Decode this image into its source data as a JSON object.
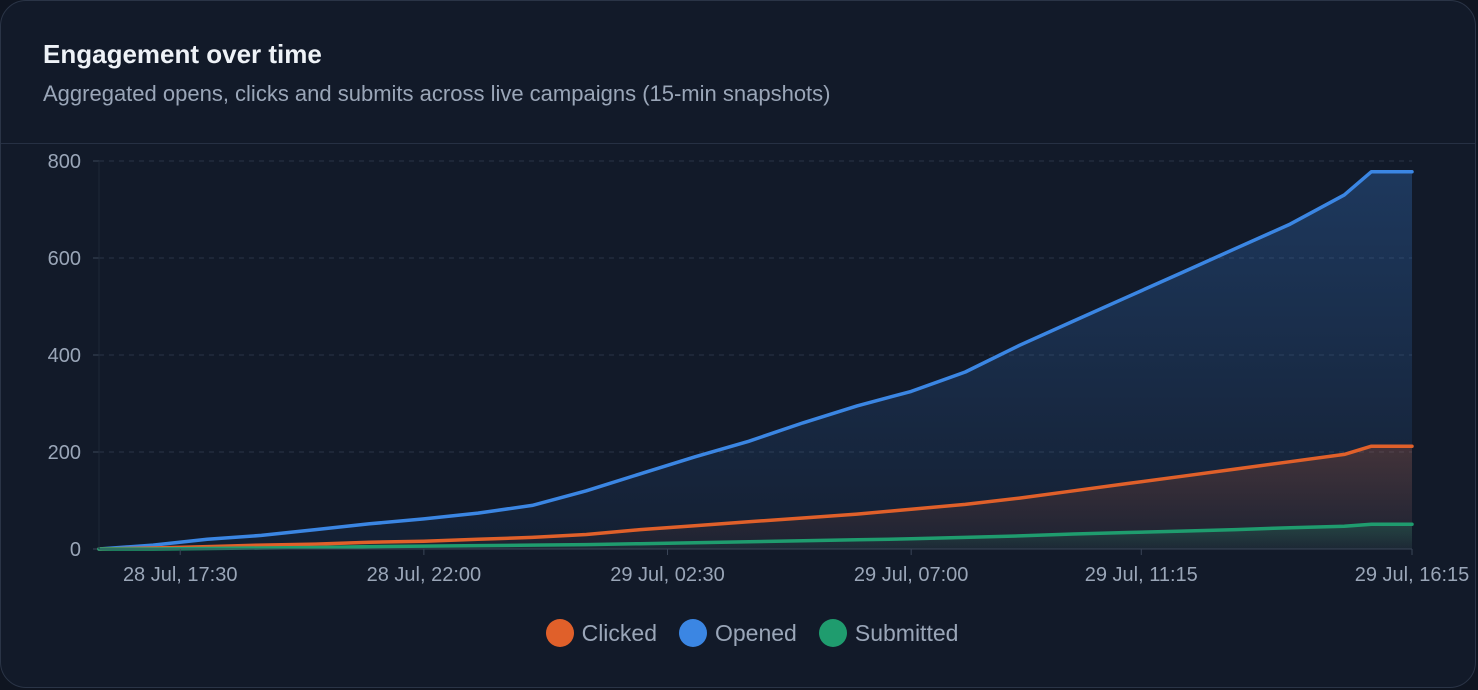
{
  "card": {
    "title": "Engagement over time",
    "subtitle": "Aggregated opens, clicks and submits across live campaigns (15-min snapshots)"
  },
  "colors": {
    "opened": "#3b86e3",
    "clicked": "#e0602a",
    "submitted": "#1f9c6e",
    "grid": "#2a3446",
    "axis": "#3a4558",
    "text": "#9aa6b8"
  },
  "legend": [
    {
      "label": "Clicked",
      "color": "#e0602a"
    },
    {
      "label": "Opened",
      "color": "#3b86e3"
    },
    {
      "label": "Submitted",
      "color": "#1f9c6e"
    }
  ],
  "chart_data": {
    "type": "area",
    "title": "",
    "xlabel": "",
    "ylabel": "",
    "ylim": [
      0,
      800
    ],
    "y_ticks": [
      0,
      200,
      400,
      600,
      800
    ],
    "x_tick_labels": [
      "28 Jul, 17:30",
      "28 Jul, 22:00",
      "29 Jul, 02:30",
      "29 Jul, 07:00",
      "29 Jul, 11:15",
      "29 Jul, 16:15"
    ],
    "x_tick_times": [
      "28 Jul, 17:30",
      "28 Jul, 22:00",
      "29 Jul, 02:30",
      "29 Jul, 07:00",
      "29 Jul, 11:15",
      "29 Jul, 16:15"
    ],
    "x_range": [
      "28 Jul, 16:00",
      "29 Jul, 16:15"
    ],
    "grid": true,
    "legend_position": "bottom",
    "x": [
      "28 Jul, 16:00",
      "28 Jul, 17:00",
      "28 Jul, 18:00",
      "28 Jul, 19:00",
      "28 Jul, 20:00",
      "28 Jul, 21:00",
      "28 Jul, 22:00",
      "28 Jul, 23:00",
      "29 Jul, 00:00",
      "29 Jul, 01:00",
      "29 Jul, 02:00",
      "29 Jul, 03:00",
      "29 Jul, 04:00",
      "29 Jul, 05:00",
      "29 Jul, 06:00",
      "29 Jul, 07:00",
      "29 Jul, 08:00",
      "29 Jul, 09:00",
      "29 Jul, 10:00",
      "29 Jul, 11:00",
      "29 Jul, 12:00",
      "29 Jul, 13:00",
      "29 Jul, 14:00",
      "29 Jul, 15:00",
      "29 Jul, 15:30",
      "29 Jul, 16:15"
    ],
    "series": [
      {
        "name": "Opened",
        "key": "opened",
        "values": [
          0,
          8,
          20,
          28,
          40,
          52,
          62,
          74,
          90,
          120,
          155,
          190,
          222,
          260,
          295,
          325,
          365,
          420,
          470,
          520,
          570,
          620,
          670,
          730,
          778,
          778
        ]
      },
      {
        "name": "Clicked",
        "key": "clicked",
        "values": [
          0,
          2,
          5,
          8,
          10,
          14,
          16,
          20,
          24,
          30,
          40,
          48,
          56,
          64,
          72,
          82,
          92,
          105,
          120,
          135,
          150,
          165,
          180,
          195,
          212,
          212
        ]
      },
      {
        "name": "Submitted",
        "key": "submitted",
        "values": [
          0,
          0,
          1,
          2,
          3,
          5,
          6,
          7,
          8,
          9,
          11,
          13,
          15,
          17,
          19,
          21,
          24,
          27,
          31,
          34,
          37,
          40,
          44,
          47,
          51,
          51
        ]
      }
    ]
  }
}
